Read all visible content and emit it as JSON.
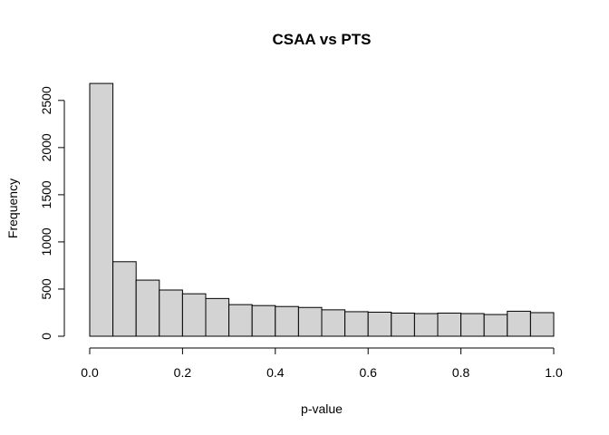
{
  "chart_data": {
    "type": "bar",
    "title": "CSAA vs PTS",
    "xlabel": "p-value",
    "ylabel": "Frequency",
    "xlim": [
      0,
      1
    ],
    "ylim": [
      0,
      2700
    ],
    "bin_width": 0.05,
    "bin_edges": [
      0.0,
      0.05,
      0.1,
      0.15,
      0.2,
      0.25,
      0.3,
      0.35,
      0.4,
      0.45,
      0.5,
      0.55,
      0.6,
      0.65,
      0.7,
      0.75,
      0.8,
      0.85,
      0.9,
      0.95,
      1.0
    ],
    "values": [
      2680,
      790,
      595,
      490,
      450,
      400,
      335,
      325,
      315,
      305,
      280,
      260,
      255,
      245,
      240,
      245,
      240,
      230,
      265,
      250
    ],
    "x_ticks": [
      0.0,
      0.2,
      0.4,
      0.6,
      0.8,
      1.0
    ],
    "x_tick_labels": [
      "0.0",
      "0.2",
      "0.4",
      "0.6",
      "0.8",
      "1.0"
    ],
    "y_ticks": [
      0,
      500,
      1000,
      1500,
      2000,
      2500
    ],
    "y_tick_labels": [
      "0",
      "500",
      "1000",
      "1500",
      "2000",
      "2500"
    ],
    "bar_fill": "#d3d3d3",
    "bar_stroke": "#000000",
    "grid": false
  }
}
